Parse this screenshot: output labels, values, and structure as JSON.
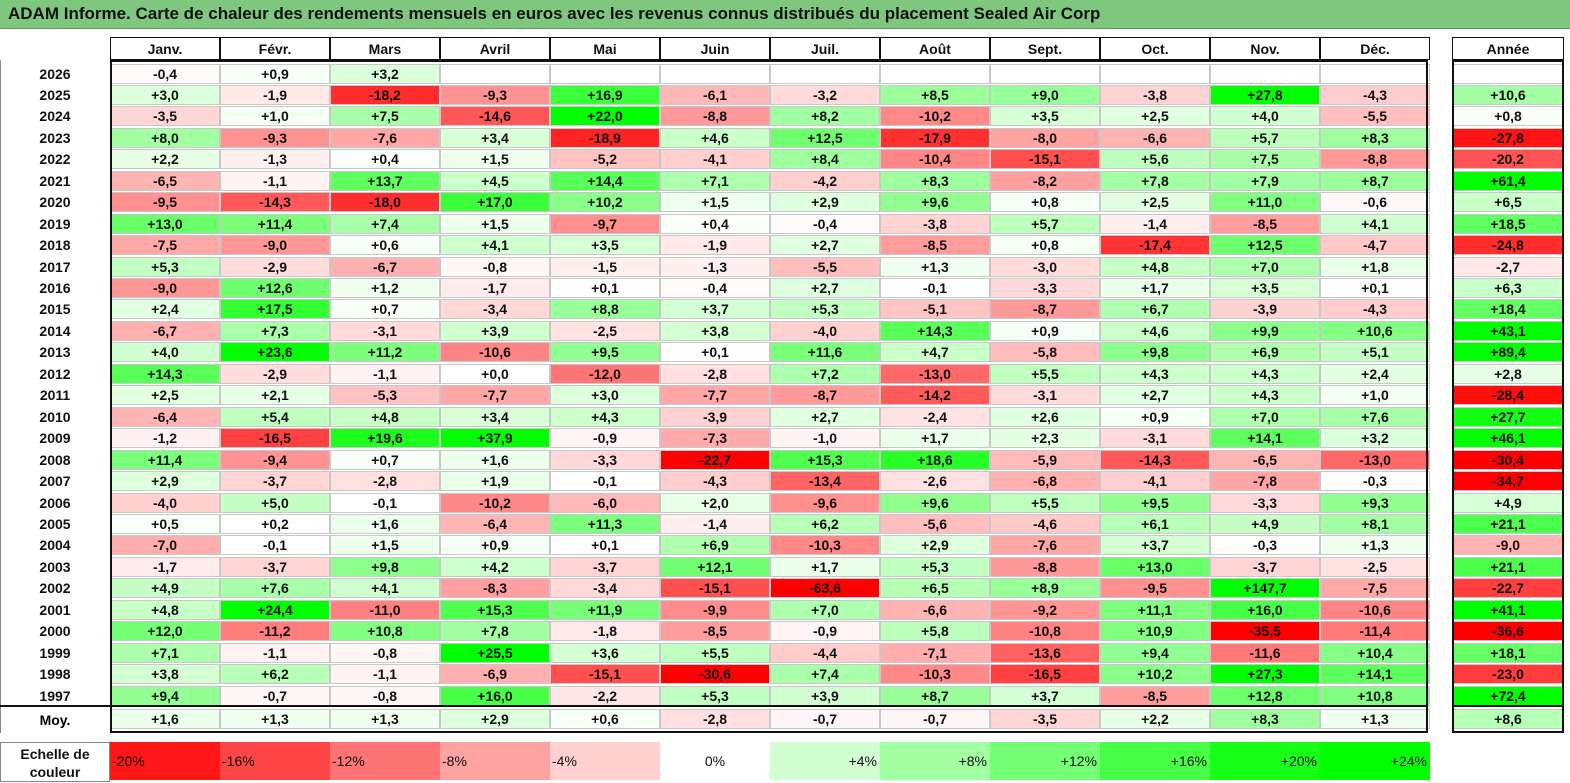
{
  "title": "ADAM Informe. Carte de chaleur des rendements mensuels en euros avec les revenus connus distribués du placement Sealed Air Corp",
  "chart_data": {
    "type": "heatmap",
    "months": [
      "Janv.",
      "Févr.",
      "Mars",
      "Avril",
      "Mai",
      "Juin",
      "Juil.",
      "Août",
      "Sept.",
      "Oct.",
      "Nov.",
      "Déc."
    ],
    "year_header": "Année",
    "avg_label": "Moy.",
    "rows": [
      {
        "year": "2026",
        "values": [
          "-0,4",
          "+0,9",
          "+3,2",
          "",
          "",
          "",
          "",
          "",
          "",
          "",
          "",
          ""
        ],
        "annual": ""
      },
      {
        "year": "2025",
        "values": [
          "+3,0",
          "-1,9",
          "-18,2",
          "-9,3",
          "+16,9",
          "-6,1",
          "-3,2",
          "+8,5",
          "+9,0",
          "-3,8",
          "+27,8",
          "-4,3"
        ],
        "annual": "+10,6"
      },
      {
        "year": "2024",
        "values": [
          "-3,5",
          "+1,0",
          "+7,5",
          "-14,6",
          "+22,0",
          "-8,8",
          "+8,2",
          "-10,2",
          "+3,5",
          "+2,5",
          "+4,0",
          "-5,5"
        ],
        "annual": "+0,8"
      },
      {
        "year": "2023",
        "values": [
          "+8,0",
          "-9,3",
          "-7,6",
          "+3,4",
          "-18,9",
          "+4,6",
          "+12,5",
          "-17,9",
          "-8,0",
          "-6,6",
          "+5,7",
          "+8,3"
        ],
        "annual": "-27,8"
      },
      {
        "year": "2022",
        "values": [
          "+2,2",
          "-1,3",
          "+0,4",
          "+1,5",
          "-5,2",
          "-4,1",
          "+8,4",
          "-10,4",
          "-15,1",
          "+5,6",
          "+7,5",
          "-8,8"
        ],
        "annual": "-20,2"
      },
      {
        "year": "2021",
        "values": [
          "-6,5",
          "-1,1",
          "+13,7",
          "+4,5",
          "+14,4",
          "+7,1",
          "-4,2",
          "+8,3",
          "-8,2",
          "+7,8",
          "+7,9",
          "+8,7"
        ],
        "annual": "+61,4"
      },
      {
        "year": "2020",
        "values": [
          "-9,5",
          "-14,3",
          "-18,0",
          "+17,0",
          "+10,2",
          "+1,5",
          "+2,9",
          "+9,6",
          "+0,8",
          "+2,5",
          "+11,0",
          "-0,6"
        ],
        "annual": "+6,5"
      },
      {
        "year": "2019",
        "values": [
          "+13,0",
          "+11,4",
          "+7,4",
          "+1,5",
          "-9,7",
          "+0,4",
          "-0,4",
          "-3,8",
          "+5,7",
          "-1,4",
          "-8,5",
          "+4,1"
        ],
        "annual": "+18,5"
      },
      {
        "year": "2018",
        "values": [
          "-7,5",
          "-9,0",
          "+0,6",
          "+4,1",
          "+3,5",
          "-1,9",
          "+2,7",
          "-8,5",
          "+0,8",
          "-17,4",
          "+12,5",
          "-4,7"
        ],
        "annual": "-24,8"
      },
      {
        "year": "2017",
        "values": [
          "+5,3",
          "-2,9",
          "-6,7",
          "-0,8",
          "-1,5",
          "-1,3",
          "-5,5",
          "+1,3",
          "-3,0",
          "+4,8",
          "+7,0",
          "+1,8"
        ],
        "annual": "-2,7"
      },
      {
        "year": "2016",
        "values": [
          "-9,0",
          "+12,6",
          "+1,2",
          "-1,7",
          "+0,1",
          "-0,4",
          "+2,7",
          "-0,1",
          "-3,3",
          "+1,7",
          "+3,5",
          "+0,1"
        ],
        "annual": "+6,3"
      },
      {
        "year": "2015",
        "values": [
          "+2,4",
          "+17,5",
          "+0,7",
          "-3,4",
          "+8,8",
          "+3,7",
          "+5,3",
          "-5,1",
          "-8,7",
          "+6,7",
          "-3,9",
          "-4,3"
        ],
        "annual": "+18,4"
      },
      {
        "year": "2014",
        "values": [
          "-6,7",
          "+7,3",
          "-3,1",
          "+3,9",
          "-2,5",
          "+3,8",
          "-4,0",
          "+14,3",
          "+0,9",
          "+4,6",
          "+9,9",
          "+10,6"
        ],
        "annual": "+43,1"
      },
      {
        "year": "2013",
        "values": [
          "+4,0",
          "+23,6",
          "+11,2",
          "-10,6",
          "+9,5",
          "+0,1",
          "+11,6",
          "+4,7",
          "-5,8",
          "+9,8",
          "+6,9",
          "+5,1"
        ],
        "annual": "+89,4"
      },
      {
        "year": "2012",
        "values": [
          "+14,3",
          "-2,9",
          "-1,1",
          "+0,0",
          "-12,0",
          "-2,8",
          "+7,2",
          "-13,0",
          "+5,5",
          "+4,3",
          "+4,3",
          "+2,4"
        ],
        "annual": "+2,8"
      },
      {
        "year": "2011",
        "values": [
          "+2,5",
          "+2,1",
          "-5,3",
          "-7,7",
          "+3,0",
          "-7,7",
          "-8,7",
          "-14,2",
          "-3,1",
          "+2,7",
          "+4,3",
          "+1,0"
        ],
        "annual": "-28,4"
      },
      {
        "year": "2010",
        "values": [
          "-6,4",
          "+5,4",
          "+4,8",
          "+3,4",
          "+4,3",
          "-3,9",
          "+2,7",
          "-2,4",
          "+2,6",
          "+0,9",
          "+7,0",
          "+7,6"
        ],
        "annual": "+27,7"
      },
      {
        "year": "2009",
        "values": [
          "-1,2",
          "-16,5",
          "+19,6",
          "+37,9",
          "-0,9",
          "-7,3",
          "-1,0",
          "+1,7",
          "+2,3",
          "-3,1",
          "+14,1",
          "+3,2"
        ],
        "annual": "+46,1"
      },
      {
        "year": "2008",
        "values": [
          "+11,4",
          "-9,4",
          "+0,7",
          "+1,6",
          "-3,3",
          "-22,7",
          "+15,3",
          "+18,6",
          "-5,9",
          "-14,3",
          "-6,5",
          "-13,0"
        ],
        "annual": "-30,4"
      },
      {
        "year": "2007",
        "values": [
          "+2,9",
          "-3,7",
          "-2,8",
          "+1,9",
          "-0,1",
          "-4,3",
          "-13,4",
          "-2,6",
          "-6,8",
          "-4,1",
          "-7,8",
          "-0,3"
        ],
        "annual": "-34,7"
      },
      {
        "year": "2006",
        "values": [
          "-4,0",
          "+5,0",
          "-0,1",
          "-10,2",
          "-6,0",
          "+2,0",
          "-9,6",
          "+9,6",
          "+5,5",
          "+9,5",
          "-3,3",
          "+9,3"
        ],
        "annual": "+4,9"
      },
      {
        "year": "2005",
        "values": [
          "+0,5",
          "+0,2",
          "+1,6",
          "-6,4",
          "+11,3",
          "-1,4",
          "+6,2",
          "-5,6",
          "-4,6",
          "+6,1",
          "+4,9",
          "+8,1"
        ],
        "annual": "+21,1"
      },
      {
        "year": "2004",
        "values": [
          "-7,0",
          "-0,1",
          "+1,5",
          "+0,9",
          "+0,1",
          "+6,9",
          "-10,3",
          "+2,9",
          "-7,6",
          "+3,7",
          "-0,3",
          "+1,3"
        ],
        "annual": "-9,0"
      },
      {
        "year": "2003",
        "values": [
          "-1,7",
          "-3,7",
          "+9,8",
          "+4,2",
          "-3,7",
          "+12,1",
          "+1,7",
          "+5,3",
          "-8,8",
          "+13,0",
          "-3,7",
          "-2,5"
        ],
        "annual": "+21,1"
      },
      {
        "year": "2002",
        "values": [
          "+4,9",
          "+7,6",
          "+4,1",
          "-8,3",
          "-3,4",
          "-15,1",
          "-63,6",
          "+6,5",
          "+8,9",
          "-9,5",
          "+147,7",
          "-7,5"
        ],
        "annual": "-22,7"
      },
      {
        "year": "2001",
        "values": [
          "+4,8",
          "+24,4",
          "-11,0",
          "+15,3",
          "+11,9",
          "-9,9",
          "+7,0",
          "-6,6",
          "-9,2",
          "+11,1",
          "+16,0",
          "-10,6"
        ],
        "annual": "+41,1"
      },
      {
        "year": "2000",
        "values": [
          "+12,0",
          "-11,2",
          "+10,8",
          "+7,8",
          "-1,8",
          "-8,5",
          "-0,9",
          "+5,8",
          "-10,8",
          "+10,9",
          "-35,5",
          "-11,4"
        ],
        "annual": "-36,6"
      },
      {
        "year": "1999",
        "values": [
          "+7,1",
          "-1,1",
          "-0,8",
          "+25,5",
          "+3,6",
          "+5,5",
          "-4,4",
          "-7,1",
          "-13,6",
          "+9,4",
          "-11,6",
          "+10,4"
        ],
        "annual": "+18,1"
      },
      {
        "year": "1998",
        "values": [
          "+3,8",
          "+6,2",
          "-1,1",
          "-6,9",
          "-15,1",
          "-30,6",
          "+7,4",
          "-10,3",
          "-16,5",
          "+10,2",
          "+27,3",
          "+14,1"
        ],
        "annual": "-23,0"
      },
      {
        "year": "1997",
        "values": [
          "+9,4",
          "-0,7",
          "-0,8",
          "+16,0",
          "-2,2",
          "+5,3",
          "+3,9",
          "+8,7",
          "+3,7",
          "-8,5",
          "+12,8",
          "+10,8"
        ],
        "annual": "+72,4"
      }
    ],
    "averages": {
      "values": [
        "+1,6",
        "+1,3",
        "+1,3",
        "+2,9",
        "+0,6",
        "-2,8",
        "-0,7",
        "-0,7",
        "-3,5",
        "+2,2",
        "+8,3",
        "+1,3"
      ],
      "annual": "+8,6"
    },
    "scale_label": "Echelle de couleur",
    "scale": [
      {
        "label": "-20%",
        "value": -20,
        "align": "left"
      },
      {
        "label": "-16%",
        "value": -16,
        "align": "left"
      },
      {
        "label": "-12%",
        "value": -12,
        "align": "left"
      },
      {
        "label": "-8%",
        "value": -8,
        "align": "left"
      },
      {
        "label": "-4%",
        "value": -4,
        "align": "left"
      },
      {
        "label": "0%",
        "value": 0,
        "align": "center"
      },
      {
        "label": "+4%",
        "value": 4,
        "align": "right"
      },
      {
        "label": "+8%",
        "value": 8,
        "align": "right"
      },
      {
        "label": "+12%",
        "value": 12,
        "align": "right"
      },
      {
        "label": "+16%",
        "value": 16,
        "align": "right"
      },
      {
        "label": "+20%",
        "value": 20,
        "align": "right"
      },
      {
        "label": "+24%",
        "value": 24,
        "align": "right"
      }
    ]
  }
}
